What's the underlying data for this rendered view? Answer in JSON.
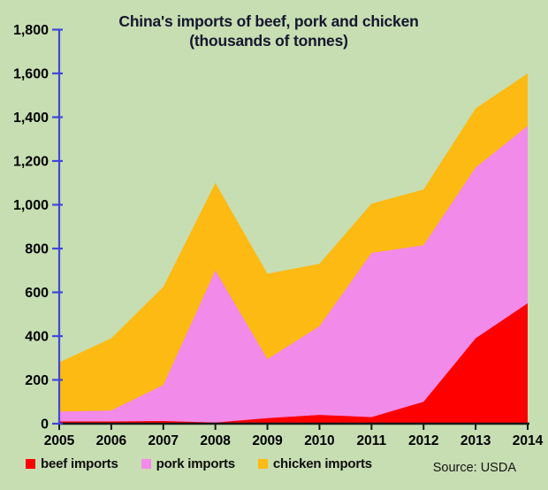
{
  "title": "China's imports of beef, pork and chicken",
  "subtitle": "(thousands of tonnes)",
  "source": "Source: USDA",
  "colors": {
    "background": "#c7deb2",
    "y_axis": "#3f46dd",
    "x_axis": "#1a1a1a",
    "title_text": "#16162e",
    "label_text": "#000000"
  },
  "chart_data": {
    "type": "area",
    "stacked": true,
    "title": "China's imports of beef, pork and chicken",
    "subtitle": "(thousands of tonnes)",
    "xlabel": "",
    "ylabel": "",
    "x": [
      2005,
      2006,
      2007,
      2008,
      2009,
      2010,
      2011,
      2012,
      2013,
      2014
    ],
    "series": [
      {
        "name": "beef imports",
        "color": "#fe0000",
        "values": [
          10,
          10,
          12,
          5,
          25,
          40,
          30,
          100,
          390,
          550
        ]
      },
      {
        "name": "pork imports",
        "color": "#f18ae9",
        "values": [
          45,
          50,
          165,
          695,
          270,
          405,
          750,
          715,
          780,
          810
        ]
      },
      {
        "name": "chicken imports",
        "color": "#fcba12",
        "values": [
          225,
          330,
          448,
          400,
          390,
          285,
          225,
          255,
          270,
          240
        ]
      }
    ],
    "stacked_totals": [
      280,
      390,
      625,
      1100,
      685,
      730,
      1005,
      1070,
      1440,
      1600
    ],
    "ylim": [
      0,
      1800
    ],
    "ytick_step": 200,
    "grid": false,
    "legend_position": "bottom-left",
    "source": "Source: USDA"
  },
  "legend": {
    "items": [
      "beef imports",
      "pork imports",
      "chicken imports"
    ]
  }
}
